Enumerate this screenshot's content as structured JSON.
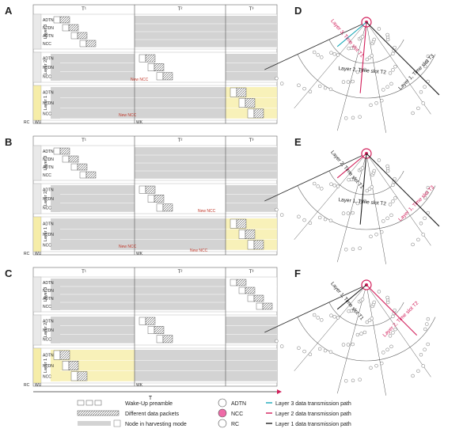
{
  "panels": [
    {
      "letter": "A",
      "slots": [
        "T¹",
        "T²",
        "T³"
      ],
      "groups": [
        {
          "label": "Layer 3",
          "rows": [
            "ADTN",
            "NTDN",
            "ADTN",
            "NCC"
          ]
        },
        {
          "label": "Layer 2",
          "rows": [
            "ADTN",
            "NTDN",
            "NCC"
          ]
        },
        {
          "label": "Layer 1",
          "rows": [
            "ADTN",
            "NTDN",
            "NCC"
          ]
        }
      ],
      "annotations": [
        "New NCC",
        "New NCC"
      ],
      "wu": "WU",
      "rc": "RC",
      "wk": "WK"
    },
    {
      "letter": "B",
      "slots": [
        "T¹",
        "T²",
        "T³"
      ],
      "groups": [
        {
          "label": "Layer 3",
          "rows": [
            "ADTN",
            "NTDN",
            "ADTN",
            "NCC"
          ]
        },
        {
          "label": "Layer 2",
          "rows": [
            "ADTN",
            "NTDN",
            "NCC"
          ]
        },
        {
          "label": "Layer 1",
          "rows": [
            "ADTN",
            "NTDN",
            "NCC"
          ]
        }
      ],
      "annotations": [
        "New NCC",
        "New NCC",
        "New NCC"
      ],
      "wu": "WU",
      "rc": "RC",
      "wk": "WK"
    },
    {
      "letter": "C",
      "slots": [
        "T¹",
        "T²",
        "T³"
      ],
      "groups": [
        {
          "label": "Layer 3",
          "rows": [
            "ADTN",
            "NTDN",
            "ADTN",
            "NCC"
          ]
        },
        {
          "label": "Layer 2",
          "rows": [
            "ADTN",
            "NTDN",
            "NCC"
          ]
        },
        {
          "label": "Layer 1",
          "rows": [
            "ADTN",
            "NTDN",
            "NCC"
          ]
        }
      ],
      "annotations": [],
      "wu": "WU",
      "rc": "RC",
      "wk": "WK"
    }
  ],
  "time_axis_label": "T",
  "sectors": [
    {
      "letter": "D",
      "labels": [
        "Layer 3, Time slot T1",
        "Layer 2, Time slot T2",
        "Layer 1, Time slot T3"
      ]
    },
    {
      "letter": "E",
      "labels": [
        "Layer 2, Time slot T1",
        "Layer 1, Time slot T2",
        "Layer 1, Time slot T3"
      ]
    },
    {
      "letter": "F",
      "labels": [
        "Layer 1, Time slot T1",
        "Layer 2, Time slot T2"
      ]
    }
  ],
  "legend": {
    "left": [
      "Wake-Up preamble",
      "Different data packets",
      "Node in harvesting mode"
    ],
    "middle": [
      "ADTN",
      "NCC",
      "RC"
    ],
    "right": [
      "Layer 3 data transmission path",
      "Layer 2 data transmission path",
      "Layer 1 data transmission path"
    ],
    "symbols": [
      "RC"
    ]
  },
  "colors": {
    "gray": "#d3d3d3",
    "yellow": "#f6eda8",
    "peach": "#f6cfa8",
    "pink": "#ee6aa7",
    "red": "#d21e5a",
    "cyan": "#1aa9b8",
    "dark": "#333333"
  }
}
